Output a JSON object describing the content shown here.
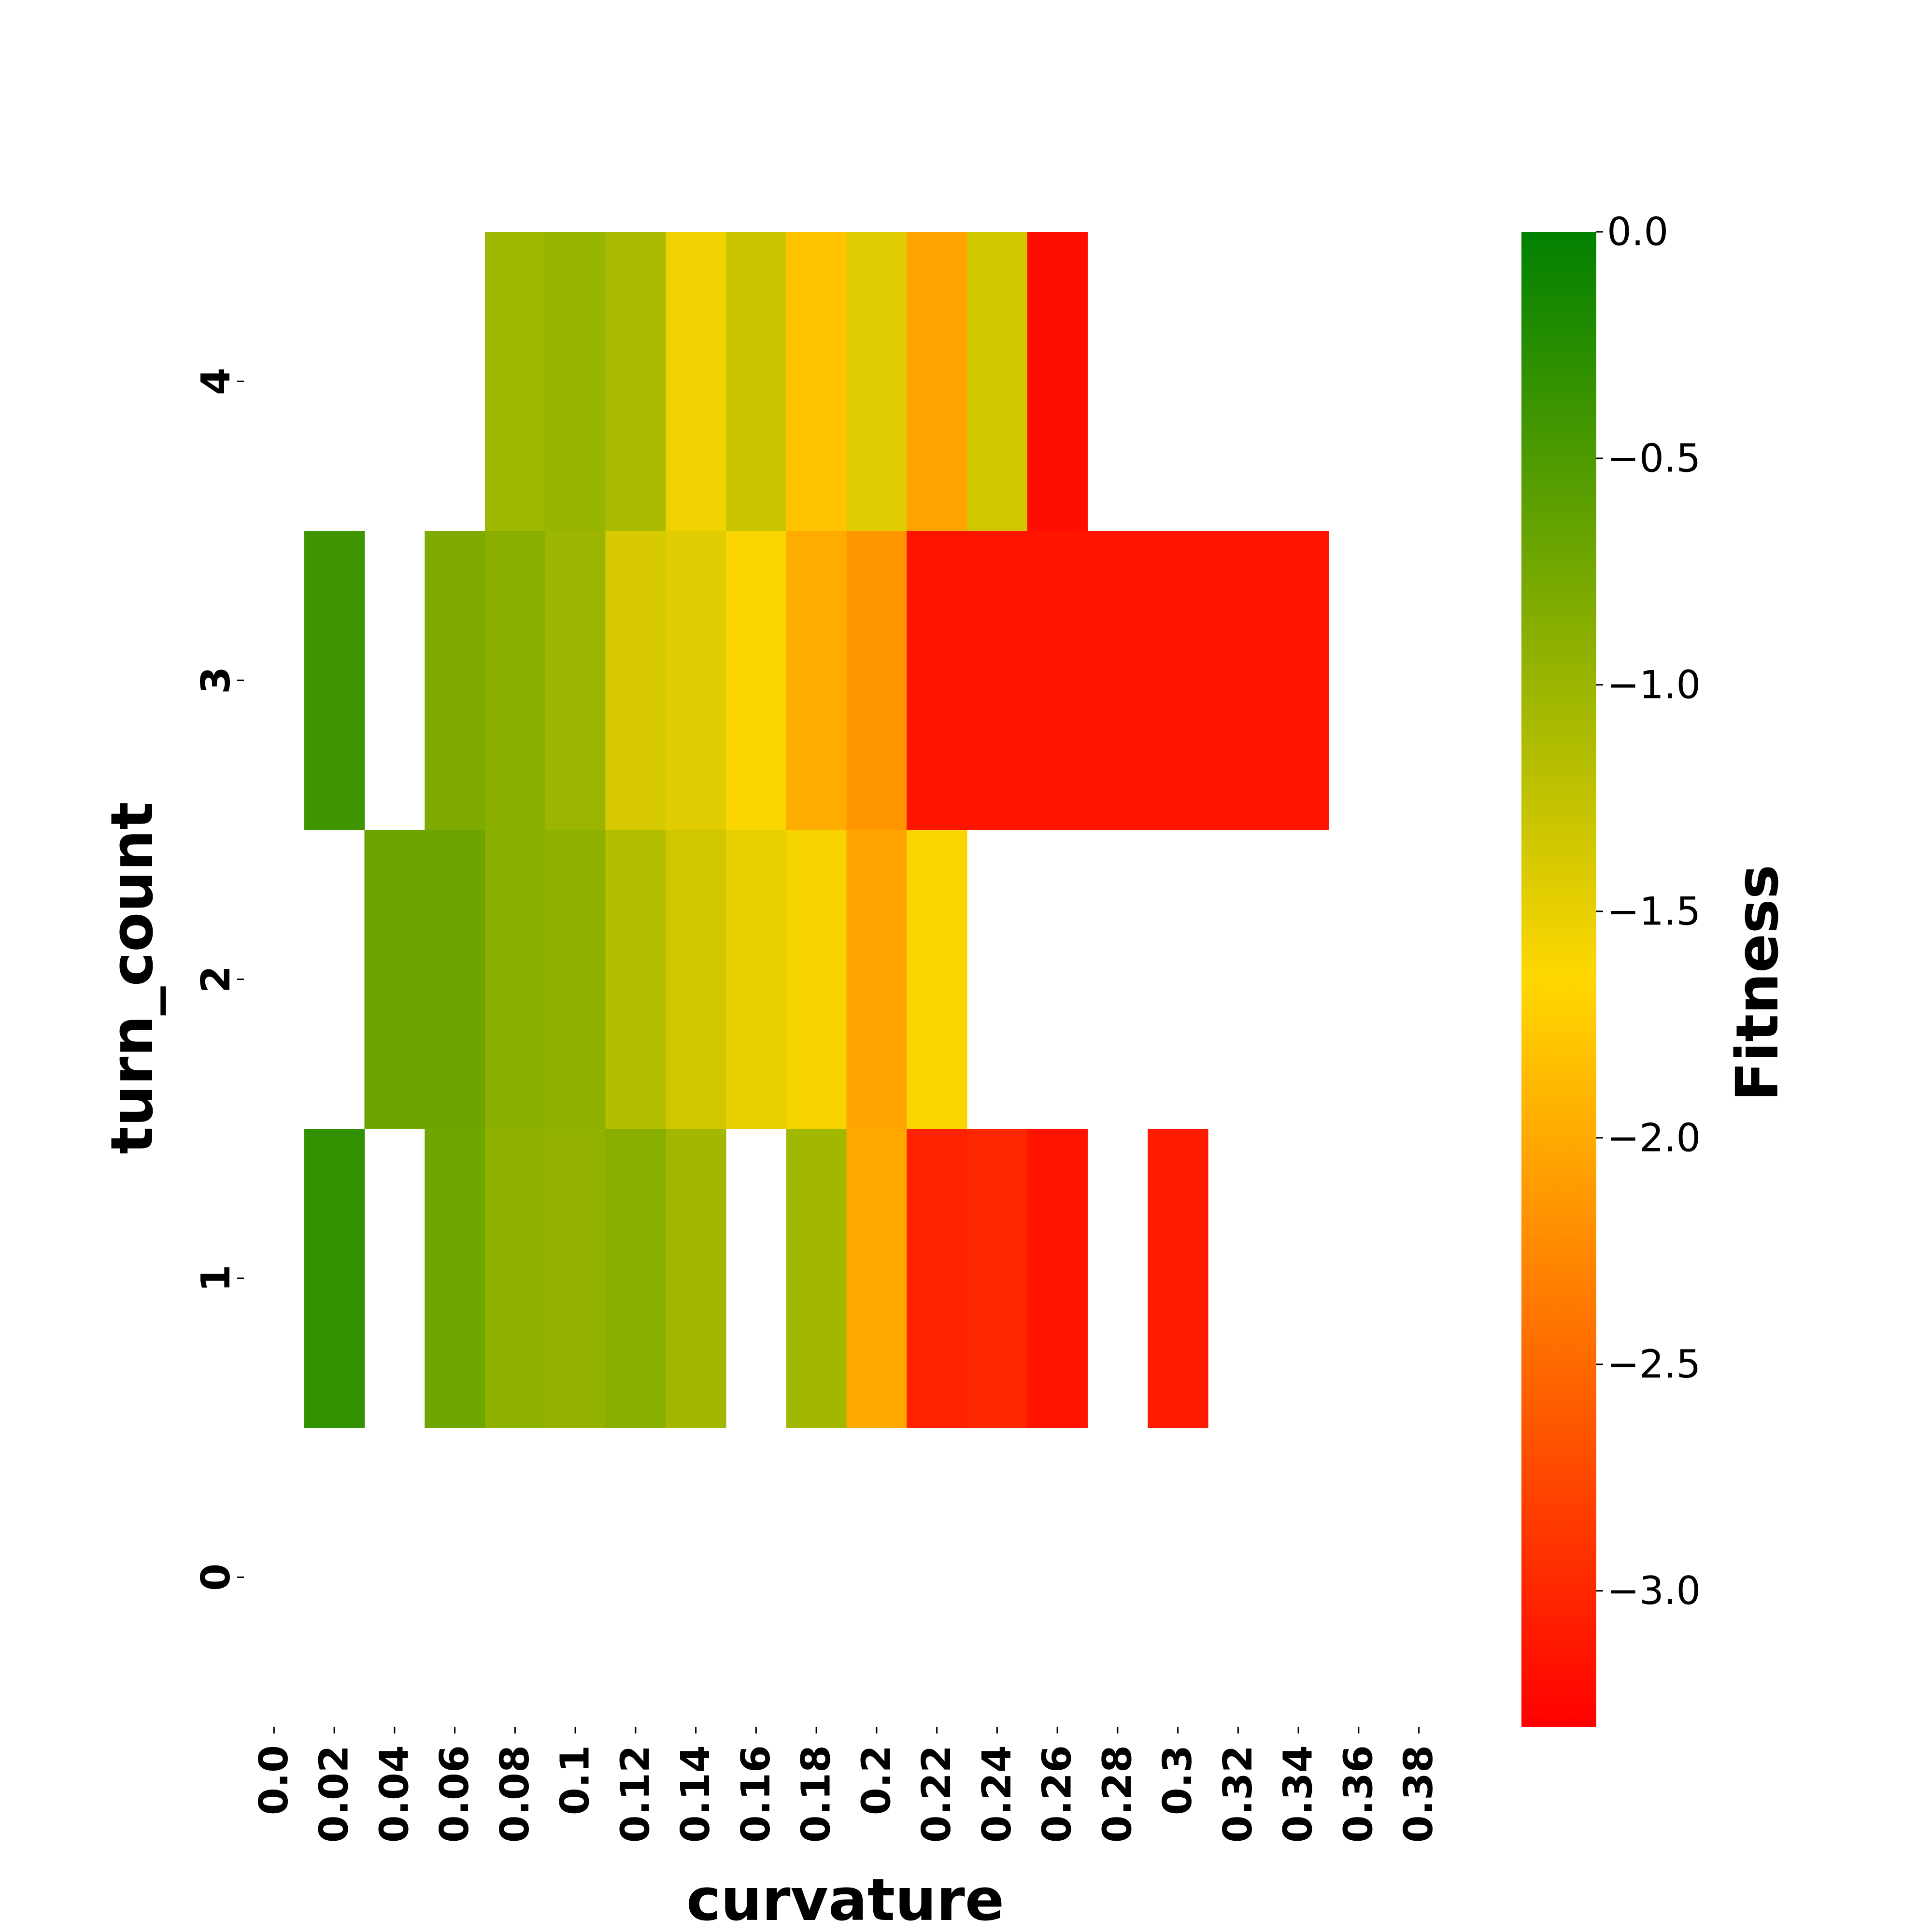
{
  "chart_data": {
    "type": "heatmap",
    "xlabel": "curvature",
    "ylabel": "turn_count",
    "x_categories": [
      "0.0",
      "0.02",
      "0.04",
      "0.06",
      "0.08",
      "0.1",
      "0.12",
      "0.14",
      "0.16",
      "0.18",
      "0.2",
      "0.22",
      "0.24",
      "0.26",
      "0.28",
      "0.3",
      "0.32",
      "0.34",
      "0.36",
      "0.38"
    ],
    "y_categories": [
      "4",
      "3",
      "2",
      "1",
      "0"
    ],
    "values": [
      [
        null,
        null,
        null,
        null,
        -1.02,
        -0.98,
        -1.1,
        -1.55,
        -1.3,
        -1.8,
        -1.45,
        -2.05,
        -1.35,
        -3.2,
        null,
        null,
        null,
        null,
        null,
        null
      ],
      [
        null,
        -0.4,
        null,
        -0.82,
        -0.9,
        -1.0,
        -1.4,
        -1.45,
        -1.62,
        -1.98,
        -2.15,
        -3.15,
        -3.15,
        -3.15,
        -3.15,
        -3.15,
        -3.15,
        -3.15,
        null,
        null
      ],
      [
        null,
        null,
        -0.7,
        -0.7,
        -0.88,
        -0.92,
        -1.15,
        -1.35,
        -1.5,
        -1.6,
        -2.05,
        -1.62,
        null,
        null,
        null,
        null,
        null,
        null,
        null,
        null
      ],
      [
        null,
        -0.32,
        null,
        -0.72,
        -0.92,
        -0.95,
        -0.88,
        -1.05,
        null,
        -1.05,
        -2.0,
        -3.05,
        -3.0,
        -3.15,
        null,
        -3.1,
        null,
        null,
        null,
        null
      ],
      [
        null,
        null,
        null,
        null,
        null,
        null,
        null,
        null,
        null,
        null,
        null,
        null,
        null,
        null,
        null,
        null,
        null,
        null,
        null,
        null
      ]
    ],
    "colorbar": {
      "label": "Fitness",
      "min": -3.3,
      "max": 0.0,
      "ticks": [
        "0.0",
        "−0.5",
        "−1.0",
        "−1.5",
        "−2.0",
        "−2.5",
        "−3.0"
      ],
      "colors": [
        "#ff0000",
        "#ffd700",
        "#008000"
      ]
    },
    "grid": false
  }
}
